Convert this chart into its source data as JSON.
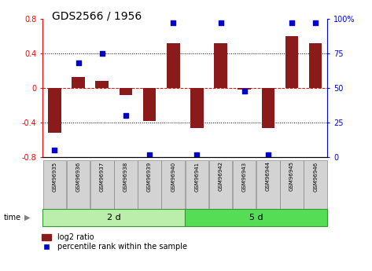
{
  "title": "GDS2566 / 1956",
  "samples": [
    "GSM96935",
    "GSM96936",
    "GSM96937",
    "GSM96938",
    "GSM96939",
    "GSM96940",
    "GSM96941",
    "GSM96942",
    "GSM96943",
    "GSM96944",
    "GSM96945",
    "GSM96946"
  ],
  "log2_ratio": [
    -0.52,
    0.13,
    0.08,
    -0.08,
    -0.38,
    0.52,
    -0.46,
    0.52,
    -0.02,
    -0.46,
    0.6,
    0.52
  ],
  "percentile_rank": [
    5,
    68,
    75,
    30,
    2,
    97,
    2,
    97,
    48,
    2,
    97,
    97
  ],
  "groups": [
    {
      "label": "2 d",
      "start": 0,
      "end": 6,
      "color": "#BBEEAA"
    },
    {
      "label": "5 d",
      "start": 6,
      "end": 12,
      "color": "#55DD55"
    }
  ],
  "bar_color": "#8B1A1A",
  "dot_color": "#0000CD",
  "ylim_left": [
    -0.8,
    0.8
  ],
  "ylim_right": [
    0,
    100
  ],
  "yticks_left": [
    -0.8,
    -0.4,
    0.0,
    0.4,
    0.8
  ],
  "ytick_labels_left": [
    "-0.8",
    "-0.4",
    "0",
    "0.4",
    "0.8"
  ],
  "yticks_right": [
    0,
    25,
    50,
    75,
    100
  ],
  "ytick_labels_right": [
    "0",
    "25",
    "50",
    "75",
    "100%"
  ],
  "hlines": [
    -0.4,
    0.0,
    0.4
  ],
  "hline_styles": [
    "dotted",
    "dashed",
    "dotted"
  ],
  "hline_colors": [
    "black",
    "red",
    "black"
  ],
  "legend_labels": [
    "log2 ratio",
    "percentile rank within the sample"
  ],
  "time_label": "time",
  "bar_width": 0.55
}
